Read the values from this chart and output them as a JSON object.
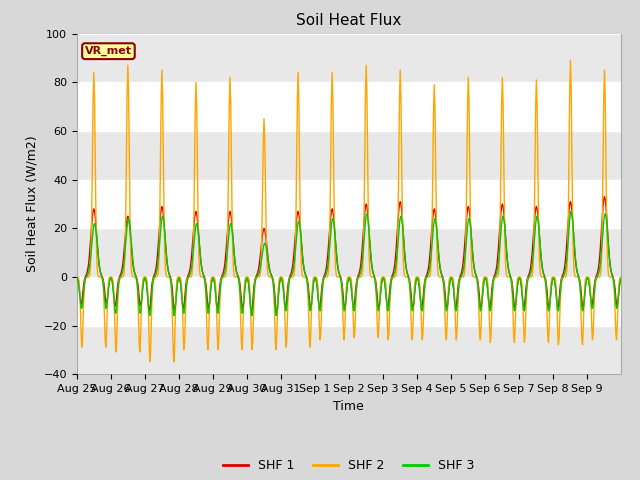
{
  "title": "Soil Heat Flux",
  "ylabel": "Soil Heat Flux (W/m2)",
  "xlabel": "Time",
  "ylim": [
    -40,
    100
  ],
  "fig_bg_color": "#d8d8d8",
  "plot_bg_color": "#ffffff",
  "shf1_color": "#dd0000",
  "shf2_color": "#ffa500",
  "shf3_color": "#00cc00",
  "annotation_text": "VR_met",
  "annotation_bg": "#ffff99",
  "annotation_border": "#8b0000",
  "tick_labels": [
    "Aug 25",
    "Aug 26",
    "Aug 27",
    "Aug 28",
    "Aug 29",
    "Aug 30",
    "Aug 31",
    "Sep 1",
    "Sep 2",
    "Sep 3",
    "Sep 4",
    "Sep 5",
    "Sep 6",
    "Sep 7",
    "Sep 8",
    "Sep 9"
  ],
  "n_days": 16,
  "title_fontsize": 11,
  "label_fontsize": 9,
  "tick_fontsize": 8,
  "legend_fontsize": 9,
  "shf1_peaks": [
    28,
    25,
    29,
    27,
    27,
    20,
    27,
    28,
    30,
    31,
    28,
    29,
    30,
    29,
    31,
    33
  ],
  "shf2_peaks": [
    84,
    87,
    85,
    80,
    82,
    65,
    84,
    84,
    87,
    85,
    79,
    82,
    82,
    81,
    89,
    85
  ],
  "shf3_peaks": [
    22,
    24,
    25,
    22,
    22,
    14,
    23,
    24,
    26,
    25,
    24,
    24,
    25,
    25,
    27,
    26
  ],
  "shf1_troughs": [
    -11,
    -12,
    -14,
    -13,
    -13,
    -15,
    -13,
    -13,
    -13,
    -13,
    -13,
    -13,
    -13,
    -13,
    -13,
    -12
  ],
  "shf2_troughs": [
    -29,
    -31,
    -35,
    -30,
    -30,
    -30,
    -29,
    -26,
    -25,
    -26,
    -26,
    -26,
    -27,
    -27,
    -28,
    -26
  ],
  "shf3_troughs": [
    -13,
    -15,
    -16,
    -15,
    -15,
    -16,
    -14,
    -14,
    -14,
    -14,
    -14,
    -14,
    -14,
    -14,
    -14,
    -13
  ]
}
